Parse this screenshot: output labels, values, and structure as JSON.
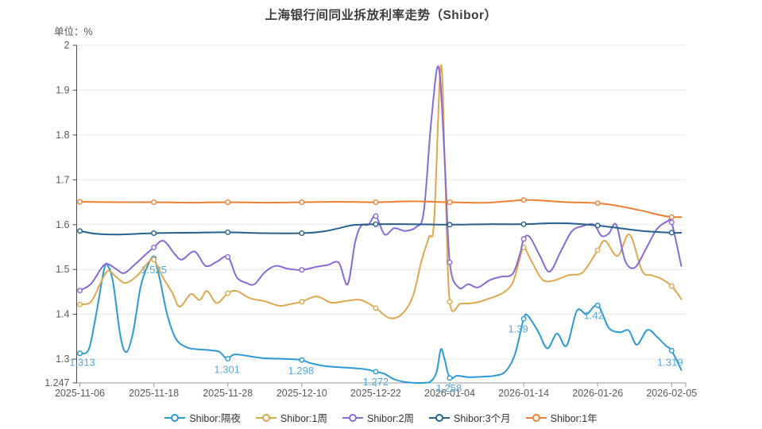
{
  "page": {
    "title": "上海银行间同业拆放利率走势（Shibor）",
    "unit_label": "单位：%"
  },
  "chart_data": {
    "type": "line",
    "title": "上海银行间同业拆放利率走势（Shibor）",
    "ylabel": "单位：%",
    "legend_position": "bottom",
    "grid": "horizontal-only",
    "y_axis": {
      "min": 1.247,
      "max": 2,
      "tick_labels": [
        "2",
        "1.9",
        "1.8",
        "1.7",
        "1.6",
        "1.5",
        "1.4",
        "1.3",
        "1.247"
      ],
      "tick_values": [
        2,
        1.9,
        1.8,
        1.7,
        1.6,
        1.5,
        1.4,
        1.3,
        1.247
      ],
      "grid_values": [
        2,
        1.9,
        1.8,
        1.7,
        1.6,
        1.5,
        1.4,
        1.3
      ]
    },
    "x_axis": {
      "tick_labels": [
        "2025-11-06",
        "2025-11-18",
        "2025-11-28",
        "2025-12-10",
        "2025-12-22",
        "2026-01-04",
        "2026-01-14",
        "2026-01-26",
        "2026-02-05"
      ]
    },
    "series": [
      {
        "id": "overnight",
        "name": "Shibor:隔夜",
        "color": "#2B9AD4",
        "marker_values_at_ticks": [
          1.313,
          1.525,
          1.301,
          1.298,
          1.272,
          1.258,
          1.39,
          1.42,
          1.319
        ],
        "points": [
          [
            0,
            1.313
          ],
          [
            0.12,
            1.322
          ],
          [
            0.22,
            1.4
          ],
          [
            0.33,
            1.502
          ],
          [
            0.38,
            1.508
          ],
          [
            0.45,
            1.47
          ],
          [
            0.55,
            1.35
          ],
          [
            0.63,
            1.316
          ],
          [
            0.72,
            1.36
          ],
          [
            0.82,
            1.46
          ],
          [
            0.92,
            1.51
          ],
          [
            1,
            1.525
          ],
          [
            1.08,
            1.48
          ],
          [
            1.18,
            1.4
          ],
          [
            1.3,
            1.345
          ],
          [
            1.45,
            1.326
          ],
          [
            1.6,
            1.322
          ],
          [
            1.75,
            1.32
          ],
          [
            1.88,
            1.317
          ],
          [
            1.95,
            1.306
          ],
          [
            2,
            1.301
          ],
          [
            2.08,
            1.31
          ],
          [
            2.2,
            1.309
          ],
          [
            2.35,
            1.305
          ],
          [
            2.5,
            1.302
          ],
          [
            2.7,
            1.301
          ],
          [
            2.85,
            1.3
          ],
          [
            3,
            1.298
          ],
          [
            3.12,
            1.291
          ],
          [
            3.3,
            1.285
          ],
          [
            3.5,
            1.282
          ],
          [
            3.7,
            1.28
          ],
          [
            3.88,
            1.277
          ],
          [
            4,
            1.272
          ],
          [
            4.12,
            1.267
          ],
          [
            4.25,
            1.255
          ],
          [
            4.4,
            1.249
          ],
          [
            4.55,
            1.247
          ],
          [
            4.72,
            1.248
          ],
          [
            4.82,
            1.27
          ],
          [
            4.88,
            1.322
          ],
          [
            4.93,
            1.3
          ],
          [
            5,
            1.258
          ],
          [
            5.1,
            1.263
          ],
          [
            5.25,
            1.26
          ],
          [
            5.45,
            1.261
          ],
          [
            5.6,
            1.263
          ],
          [
            5.75,
            1.272
          ],
          [
            5.88,
            1.31
          ],
          [
            6,
            1.39
          ],
          [
            6.06,
            1.396
          ],
          [
            6.2,
            1.36
          ],
          [
            6.32,
            1.324
          ],
          [
            6.45,
            1.357
          ],
          [
            6.58,
            1.33
          ],
          [
            6.72,
            1.408
          ],
          [
            6.85,
            1.4
          ],
          [
            7,
            1.42
          ],
          [
            7.15,
            1.37
          ],
          [
            7.3,
            1.36
          ],
          [
            7.42,
            1.364
          ],
          [
            7.53,
            1.332
          ],
          [
            7.67,
            1.365
          ],
          [
            7.8,
            1.35
          ],
          [
            7.92,
            1.33
          ],
          [
            8,
            1.319
          ],
          [
            8.13,
            1.276
          ]
        ],
        "point_labels": [
          {
            "t": 0,
            "text": "1.313",
            "dx": 3,
            "dy": 16
          },
          {
            "t": 1,
            "text": "1.525",
            "dx": 0,
            "dy": 19
          },
          {
            "t": 2,
            "text": "1.301",
            "dx": -1,
            "dy": 18
          },
          {
            "t": 3,
            "text": "1.298",
            "dx": -1,
            "dy": 18
          },
          {
            "t": 4,
            "text": "1.272",
            "dx": 0,
            "dy": 17
          },
          {
            "t": 5,
            "text": "1.258",
            "dx": -1,
            "dy": 17
          },
          {
            "t": 6,
            "text": "1.39",
            "dx": -7,
            "dy": 17
          },
          {
            "t": 7,
            "text": "1.42",
            "dx": -5,
            "dy": 17
          },
          {
            "t": 8,
            "text": "1.319",
            "dx": -2,
            "dy": 19
          }
        ]
      },
      {
        "id": "1w",
        "name": "Shibor:1周",
        "color": "#DFA74E",
        "marker_values_at_ticks": [
          1.422,
          1.522,
          1.447,
          1.428,
          1.414,
          1.428,
          1.549,
          1.543,
          1.463
        ],
        "points": [
          [
            0,
            1.422
          ],
          [
            0.15,
            1.428
          ],
          [
            0.28,
            1.47
          ],
          [
            0.38,
            1.497
          ],
          [
            0.5,
            1.482
          ],
          [
            0.62,
            1.47
          ],
          [
            0.78,
            1.487
          ],
          [
            0.92,
            1.515
          ],
          [
            1,
            1.522
          ],
          [
            1.12,
            1.483
          ],
          [
            1.25,
            1.448
          ],
          [
            1.35,
            1.417
          ],
          [
            1.5,
            1.445
          ],
          [
            1.62,
            1.432
          ],
          [
            1.72,
            1.452
          ],
          [
            1.85,
            1.425
          ],
          [
            2,
            1.447
          ],
          [
            2.12,
            1.452
          ],
          [
            2.3,
            1.436
          ],
          [
            2.5,
            1.429
          ],
          [
            2.7,
            1.419
          ],
          [
            2.85,
            1.423
          ],
          [
            3,
            1.428
          ],
          [
            3.2,
            1.44
          ],
          [
            3.4,
            1.426
          ],
          [
            3.6,
            1.43
          ],
          [
            3.8,
            1.432
          ],
          [
            4,
            1.414
          ],
          [
            4.18,
            1.392
          ],
          [
            4.35,
            1.4
          ],
          [
            4.5,
            1.44
          ],
          [
            4.62,
            1.52
          ],
          [
            4.72,
            1.572
          ],
          [
            4.79,
            1.61
          ],
          [
            4.88,
            1.955
          ],
          [
            4.94,
            1.7
          ],
          [
            5,
            1.428
          ],
          [
            5.15,
            1.424
          ],
          [
            5.35,
            1.426
          ],
          [
            5.55,
            1.436
          ],
          [
            5.72,
            1.448
          ],
          [
            5.85,
            1.47
          ],
          [
            5.94,
            1.52
          ],
          [
            6,
            1.549
          ],
          [
            6.1,
            1.52
          ],
          [
            6.25,
            1.478
          ],
          [
            6.4,
            1.475
          ],
          [
            6.6,
            1.487
          ],
          [
            6.8,
            1.494
          ],
          [
            7,
            1.543
          ],
          [
            7.1,
            1.564
          ],
          [
            7.27,
            1.53
          ],
          [
            7.43,
            1.578
          ],
          [
            7.6,
            1.497
          ],
          [
            7.73,
            1.487
          ],
          [
            7.85,
            1.48
          ],
          [
            8,
            1.463
          ],
          [
            8.13,
            1.434
          ]
        ]
      },
      {
        "id": "2w",
        "name": "Shibor:2周",
        "color": "#8A6AD6",
        "marker_values_at_ticks": [
          1.453,
          1.549,
          1.528,
          1.499,
          1.619,
          1.516,
          1.568,
          1.585,
          1.605
        ],
        "points": [
          [
            0,
            1.453
          ],
          [
            0.15,
            1.468
          ],
          [
            0.3,
            1.505
          ],
          [
            0.38,
            1.512
          ],
          [
            0.5,
            1.5
          ],
          [
            0.6,
            1.492
          ],
          [
            0.75,
            1.512
          ],
          [
            0.9,
            1.535
          ],
          [
            1,
            1.549
          ],
          [
            1.13,
            1.564
          ],
          [
            1.28,
            1.535
          ],
          [
            1.38,
            1.522
          ],
          [
            1.55,
            1.54
          ],
          [
            1.7,
            1.508
          ],
          [
            1.85,
            1.517
          ],
          [
            2,
            1.528
          ],
          [
            2.12,
            1.483
          ],
          [
            2.25,
            1.47
          ],
          [
            2.36,
            1.467
          ],
          [
            2.5,
            1.494
          ],
          [
            2.65,
            1.508
          ],
          [
            2.8,
            1.502
          ],
          [
            3,
            1.499
          ],
          [
            3.2,
            1.506
          ],
          [
            3.35,
            1.51
          ],
          [
            3.5,
            1.515
          ],
          [
            3.62,
            1.467
          ],
          [
            3.72,
            1.56
          ],
          [
            3.8,
            1.597
          ],
          [
            3.9,
            1.6
          ],
          [
            4,
            1.619
          ],
          [
            4.12,
            1.578
          ],
          [
            4.25,
            1.592
          ],
          [
            4.4,
            1.586
          ],
          [
            4.55,
            1.595
          ],
          [
            4.65,
            1.63
          ],
          [
            4.75,
            1.83
          ],
          [
            4.85,
            1.952
          ],
          [
            4.93,
            1.75
          ],
          [
            5,
            1.516
          ],
          [
            5.12,
            1.46
          ],
          [
            5.25,
            1.467
          ],
          [
            5.38,
            1.46
          ],
          [
            5.55,
            1.477
          ],
          [
            5.7,
            1.484
          ],
          [
            5.85,
            1.49
          ],
          [
            5.95,
            1.535
          ],
          [
            6,
            1.568
          ],
          [
            6.08,
            1.573
          ],
          [
            6.22,
            1.53
          ],
          [
            6.35,
            1.495
          ],
          [
            6.5,
            1.54
          ],
          [
            6.65,
            1.585
          ],
          [
            6.8,
            1.597
          ],
          [
            6.95,
            1.6
          ],
          [
            7.05,
            1.575
          ],
          [
            7.15,
            1.58
          ],
          [
            7.25,
            1.6
          ],
          [
            7.37,
            1.52
          ],
          [
            7.5,
            1.504
          ],
          [
            7.65,
            1.545
          ],
          [
            7.8,
            1.59
          ],
          [
            7.95,
            1.608
          ],
          [
            8,
            1.605
          ],
          [
            8.13,
            1.508
          ]
        ]
      },
      {
        "id": "3m",
        "name": "Shibor:3个月",
        "color": "#27618F",
        "marker_values_at_ticks": [
          1.586,
          1.581,
          1.583,
          1.581,
          1.601,
          1.6,
          1.601,
          1.598,
          1.582
        ],
        "points": [
          [
            0,
            1.586
          ],
          [
            0.2,
            1.58
          ],
          [
            0.5,
            1.578
          ],
          [
            1,
            1.581
          ],
          [
            1.5,
            1.582
          ],
          [
            2,
            1.583
          ],
          [
            2.5,
            1.581
          ],
          [
            3,
            1.581
          ],
          [
            3.3,
            1.585
          ],
          [
            3.5,
            1.592
          ],
          [
            3.7,
            1.599
          ],
          [
            4,
            1.601
          ],
          [
            4.5,
            1.601
          ],
          [
            5,
            1.6
          ],
          [
            5.5,
            1.601
          ],
          [
            6,
            1.601
          ],
          [
            6.3,
            1.603
          ],
          [
            6.6,
            1.603
          ],
          [
            7,
            1.598
          ],
          [
            7.3,
            1.592
          ],
          [
            7.6,
            1.586
          ],
          [
            8,
            1.582
          ],
          [
            8.13,
            1.582
          ]
        ]
      },
      {
        "id": "1y",
        "name": "Shibor:1年",
        "color": "#EC8033",
        "marker_values_at_ticks": [
          1.651,
          1.65,
          1.65,
          1.65,
          1.65,
          1.65,
          1.655,
          1.648,
          1.617
        ],
        "points": [
          [
            0,
            1.651
          ],
          [
            0.5,
            1.65
          ],
          [
            1,
            1.65
          ],
          [
            1.5,
            1.649
          ],
          [
            2,
            1.65
          ],
          [
            2.5,
            1.649
          ],
          [
            3,
            1.65
          ],
          [
            3.5,
            1.651
          ],
          [
            4,
            1.65
          ],
          [
            4.5,
            1.652
          ],
          [
            5,
            1.65
          ],
          [
            5.5,
            1.649
          ],
          [
            6,
            1.655
          ],
          [
            6.3,
            1.653
          ],
          [
            6.6,
            1.65
          ],
          [
            7,
            1.648
          ],
          [
            7.3,
            1.641
          ],
          [
            7.6,
            1.631
          ],
          [
            7.85,
            1.621
          ],
          [
            8,
            1.617
          ],
          [
            8.13,
            1.617
          ]
        ]
      }
    ],
    "legend": [
      "Shibor:隔夜",
      "Shibor:1周",
      "Shibor:2周",
      "Shibor:3个月",
      "Shibor:1年"
    ],
    "colors": {
      "grid": "#e6e6e6",
      "y_axis_line": "#4d4d4d",
      "x_axis_line": "#999999",
      "tick_label": "#5a5a5a",
      "annotation_text": "#54a8dc",
      "title_text": "#3c3c3c"
    }
  }
}
